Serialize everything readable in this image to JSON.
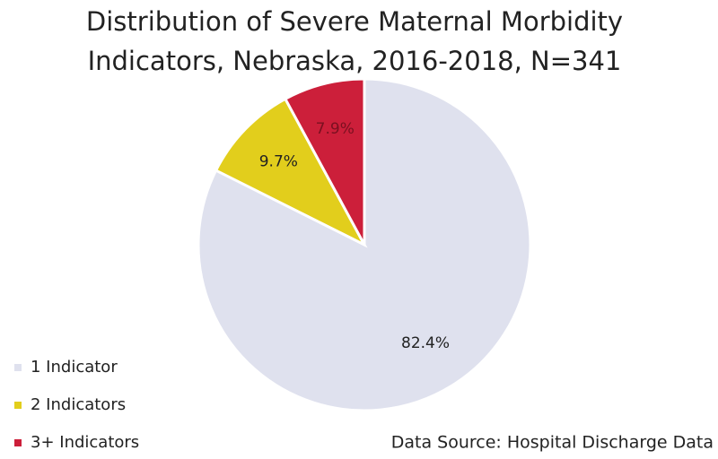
{
  "chart_data": {
    "type": "pie",
    "title": [
      "Distribution of Severe Maternal Morbidity",
      "Indicators, Nebraska, 2016-2018, N=341"
    ],
    "categories": [
      "1 Indicator",
      "2 Indicators",
      "3+ Indicators"
    ],
    "values": [
      82.4,
      9.7,
      7.9
    ],
    "value_labels": [
      "82.4%",
      "9.7%",
      "7.9%"
    ],
    "colors": [
      "#dfe1ee",
      "#e2ce1c",
      "#cc1f3a"
    ],
    "label_colors": [
      "#222222",
      "#222222",
      "#7a1020"
    ],
    "source": "Data Source: Hospital Discharge Data"
  }
}
